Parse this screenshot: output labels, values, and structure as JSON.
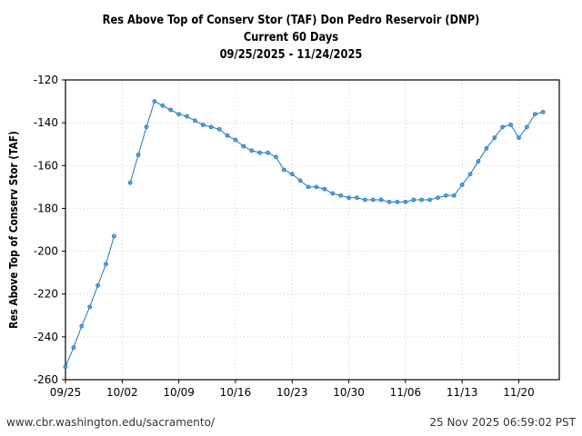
{
  "chart_data": {
    "type": "line",
    "title": "Res Above Top of Conserv Stor (TAF) Don Pedro Reservoir (DNP)",
    "subtitle": "Current 60 Days",
    "date_range": "09/25/2025 - 11/24/2025",
    "ylabel": "Res Above Top of Conserv Stor (TAF)",
    "xlabel": "",
    "ylim": [
      -260,
      -120
    ],
    "yticks": [
      -120,
      -140,
      -160,
      -180,
      -200,
      -220,
      -240,
      -260
    ],
    "xlim": [
      "09/25",
      "11/25"
    ],
    "xticks": [
      "09/25",
      "10/02",
      "10/09",
      "10/16",
      "10/23",
      "10/30",
      "11/06",
      "11/13",
      "11/20"
    ],
    "grid": true,
    "color": "#1f77b4",
    "x": [
      "09/25",
      "09/26",
      "09/27",
      "09/28",
      "09/29",
      "09/30",
      "10/01",
      "10/02",
      "10/03",
      "10/04",
      "10/05",
      "10/06",
      "10/07",
      "10/08",
      "10/09",
      "10/10",
      "10/11",
      "10/12",
      "10/13",
      "10/14",
      "10/15",
      "10/16",
      "10/17",
      "10/18",
      "10/19",
      "10/20",
      "10/21",
      "10/22",
      "10/23",
      "10/24",
      "10/25",
      "10/26",
      "10/27",
      "10/28",
      "10/29",
      "10/30",
      "10/31",
      "11/01",
      "11/02",
      "11/03",
      "11/04",
      "11/05",
      "11/06",
      "11/07",
      "11/08",
      "11/09",
      "11/10",
      "11/11",
      "11/12",
      "11/13",
      "11/14",
      "11/15",
      "11/16",
      "11/17",
      "11/18",
      "11/19",
      "11/20",
      "11/21",
      "11/22",
      "11/23"
    ],
    "values": [
      -254,
      -245,
      -235,
      -226,
      -216,
      -206,
      -193,
      null,
      -168,
      -155,
      -142,
      -130,
      -132,
      -134,
      -136,
      -137,
      -139,
      -141,
      -142,
      -143,
      -146,
      -148,
      -151,
      -153,
      -154,
      -154,
      -156,
      -162,
      -164,
      -167,
      -170,
      -170,
      -171,
      -173,
      -174,
      -175,
      -175,
      -176,
      -176,
      -176,
      -177,
      -177,
      -177,
      -176,
      -176,
      -176,
      -175,
      -174,
      -174,
      -169,
      -164,
      -158,
      -152,
      -147,
      -142,
      -141,
      -147,
      -142,
      -136,
      -135
    ]
  },
  "footer": {
    "url": "www.cbr.washington.edu/sacramento/",
    "timestamp": "25 Nov 2025 06:59:02 PST"
  }
}
